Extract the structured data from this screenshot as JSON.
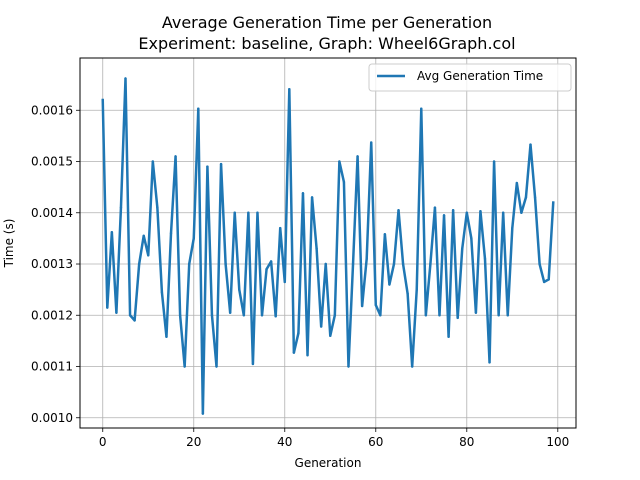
{
  "chart_data": {
    "type": "line",
    "title": "Average Generation Time per Generation",
    "subtitle": "Experiment: baseline, Graph: Wheel6Graph.col",
    "xlabel": "Generation",
    "ylabel": "Time (s)",
    "xlim": [
      -5,
      104
    ],
    "ylim": [
      0.00098,
      0.001702
    ],
    "xticks": [
      0,
      20,
      40,
      60,
      80,
      100
    ],
    "yticks": [
      0.001,
      0.0011,
      0.0012,
      0.0013,
      0.0014,
      0.0015,
      0.0016
    ],
    "ytick_labels": [
      "0.0010",
      "0.0011",
      "0.0012",
      "0.0013",
      "0.0014",
      "0.0015",
      "0.0016"
    ],
    "grid": true,
    "legend_position": "top-right",
    "series": [
      {
        "name": "Avg Generation Time",
        "color": "#1f77b4",
        "x": [
          0,
          1,
          2,
          3,
          4,
          5,
          6,
          7,
          8,
          9,
          10,
          11,
          12,
          13,
          14,
          15,
          16,
          17,
          18,
          19,
          20,
          21,
          22,
          23,
          24,
          25,
          26,
          27,
          28,
          29,
          30,
          31,
          32,
          33,
          34,
          35,
          36,
          37,
          38,
          39,
          40,
          41,
          42,
          43,
          44,
          45,
          46,
          47,
          48,
          49,
          50,
          51,
          52,
          53,
          54,
          55,
          56,
          57,
          58,
          59,
          60,
          61,
          62,
          63,
          64,
          65,
          66,
          67,
          68,
          69,
          70,
          71,
          72,
          73,
          74,
          75,
          76,
          77,
          78,
          79,
          80,
          81,
          82,
          83,
          84,
          85,
          86,
          87,
          88,
          89,
          90,
          91,
          92,
          93,
          94,
          95,
          96,
          97,
          98,
          99
        ],
        "y": [
          0.00162,
          0.001215,
          0.001362,
          0.001205,
          0.00141,
          0.001662,
          0.0012,
          0.00119,
          0.0013,
          0.001355,
          0.001317,
          0.0015,
          0.00141,
          0.001245,
          0.001158,
          0.00136,
          0.00151,
          0.0012,
          0.0011,
          0.0013,
          0.00135,
          0.001603,
          0.001008,
          0.00149,
          0.0012,
          0.0011,
          0.001495,
          0.0013,
          0.001205,
          0.0014,
          0.00125,
          0.0012,
          0.0014,
          0.001105,
          0.0014,
          0.0012,
          0.00129,
          0.001305,
          0.001198,
          0.00137,
          0.001265,
          0.001641,
          0.001127,
          0.001165,
          0.001438,
          0.001122,
          0.00143,
          0.00133,
          0.001178,
          0.0013,
          0.00116,
          0.0012,
          0.0015,
          0.00146,
          0.0011,
          0.0013,
          0.00151,
          0.001218,
          0.00131,
          0.001537,
          0.00122,
          0.0012,
          0.001358,
          0.00126,
          0.0013,
          0.001405,
          0.0013,
          0.001242,
          0.0011,
          0.00125,
          0.001603,
          0.0012,
          0.0013,
          0.00141,
          0.0012,
          0.001395,
          0.001158,
          0.001405,
          0.001195,
          0.00133,
          0.0014,
          0.00135,
          0.001205,
          0.001403,
          0.00131,
          0.001108,
          0.0015,
          0.0012,
          0.0014,
          0.0012,
          0.00137,
          0.001458,
          0.0014,
          0.00143,
          0.001533,
          0.00143,
          0.0013,
          0.001265,
          0.00127,
          0.00142
        ]
      }
    ]
  }
}
